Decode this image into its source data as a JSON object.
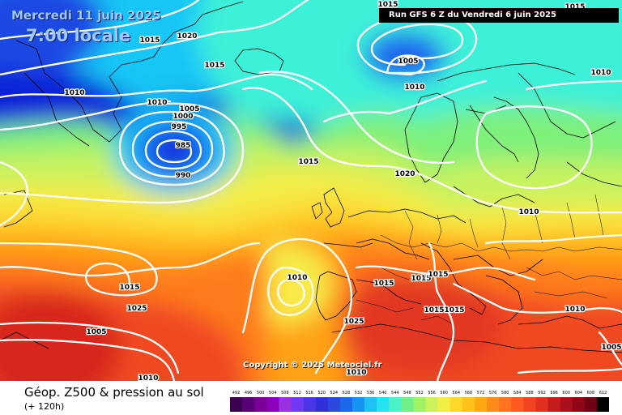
{
  "header": {
    "date": "Mercredi 11 juin 2025",
    "local_time": "7:00 locale",
    "run_info": "Run GFS 6 Z du Vendredi 6 juin 2025"
  },
  "copyright": "Copyright © 2025 Meteociel.fr",
  "footer": {
    "title": "Géop. Z500 & pression au sol",
    "forecast_hour": "(+ 120h)"
  },
  "legend": {
    "scale_labels": [
      "492",
      "496",
      "500",
      "504",
      "508",
      "512",
      "516",
      "520",
      "524",
      "528",
      "532",
      "536",
      "540",
      "544",
      "548",
      "552",
      "556",
      "560",
      "564",
      "568",
      "572",
      "576",
      "580",
      "584",
      "588",
      "592",
      "596",
      "600",
      "604",
      "608",
      "612"
    ],
    "scale_colors": [
      "#3b004f",
      "#5a0077",
      "#7a0098",
      "#8b00b8",
      "#9a30e0",
      "#6f3af2",
      "#4a36e6",
      "#3030d8",
      "#2a4ade",
      "#1a6ae8",
      "#1496f0",
      "#1ec1f4",
      "#28e2f2",
      "#4cf2c6",
      "#70ee8a",
      "#9ef264",
      "#cdf25c",
      "#f2ee44",
      "#ffd72a",
      "#ffc21a",
      "#ffa812",
      "#ff8c1a",
      "#ff721e",
      "#ff5a20",
      "#f24420",
      "#e03020",
      "#c41c1c",
      "#a8101c",
      "#8c0818",
      "#700014",
      "#000000"
    ]
  },
  "map": {
    "pressure_labels": [
      "1015",
      "1020",
      "1015",
      "1010",
      "1010",
      "1005",
      "1000",
      "995",
      "985",
      "990",
      "1015",
      "1005",
      "1010",
      "1010",
      "1015",
      "1015",
      "1010",
      "1010",
      "1015",
      "1020",
      "1015",
      "1015",
      "1015",
      "1015",
      "1015",
      "1010",
      "1025",
      "1025",
      "1005",
      "1010"
    ],
    "colors": {
      "deep_blue": "#0a24d8",
      "blue": "#1e62ee",
      "cyan": "#16c6f6",
      "aqua": "#3cf0d8",
      "green": "#7ef07a",
      "lime": "#c8f25e",
      "yellow": "#f4ec48",
      "gold": "#ffd22a",
      "orange": "#ffa212",
      "orange_red": "#ff7a1a",
      "red": "#f04a20",
      "dark_red": "#d8261c",
      "isobar": "#ffffff",
      "coast": "#000000"
    }
  }
}
